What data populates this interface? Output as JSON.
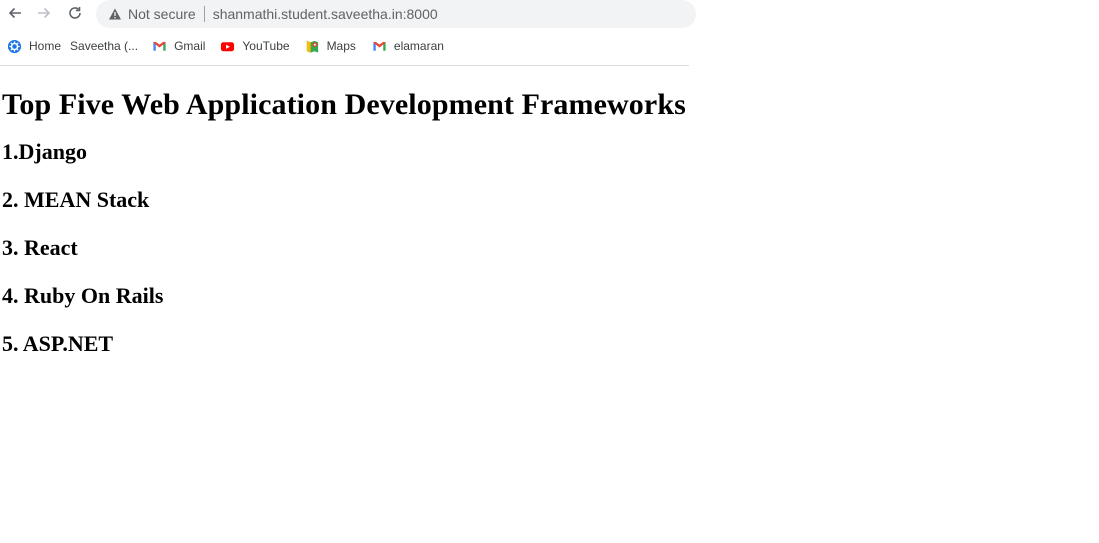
{
  "browser": {
    "security_label": "Not secure",
    "url": "shanmathi.student.saveetha.in:8000",
    "bookmarks": [
      {
        "label": "Home",
        "icon": "settings-icon"
      },
      {
        "label": "Saveetha (...",
        "icon": "none"
      },
      {
        "label": "Gmail",
        "icon": "gmail-icon"
      },
      {
        "label": "YouTube",
        "icon": "youtube-icon"
      },
      {
        "label": "Maps",
        "icon": "maps-icon"
      },
      {
        "label": "elamaran",
        "icon": "gmail-icon"
      }
    ]
  },
  "page": {
    "title": "Top Five Web Application Development Frameworks",
    "frameworks": [
      "1.Django",
      "2. MEAN Stack",
      "3. React",
      "4. Ruby On Rails",
      "5. ASP.NET"
    ]
  },
  "colors": {
    "toolbar_bg": "#ffffff",
    "omnibox_bg": "#f1f3f4",
    "gmail_red": "#ea4335",
    "youtube_red": "#ff0000",
    "home_icon_blue": "#1a73e8"
  }
}
